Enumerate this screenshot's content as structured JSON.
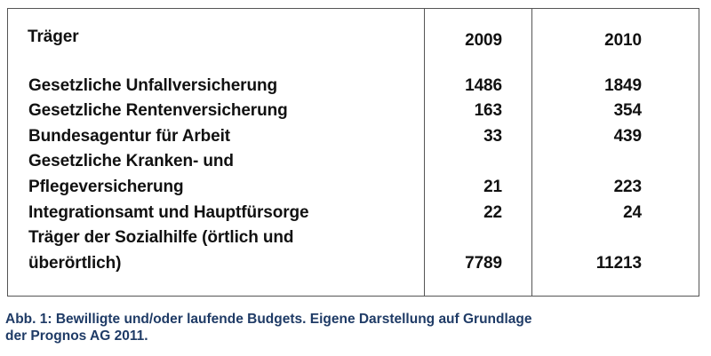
{
  "chart_data": {
    "type": "table",
    "columns": [
      "Träger",
      "2009",
      "2010"
    ],
    "rows": [
      {
        "label_lines": [
          "Gesetzliche Unfallversicherung"
        ],
        "y2009": "1486",
        "y2010": "1849"
      },
      {
        "label_lines": [
          "Gesetzliche Rentenversicherung"
        ],
        "y2009": "163",
        "y2010": "354"
      },
      {
        "label_lines": [
          "Bundesagentur für Arbeit"
        ],
        "y2009": "33",
        "y2010": "439"
      },
      {
        "label_lines": [
          "Gesetzliche Kranken- und",
          "Pflegeversicherung"
        ],
        "y2009": "21",
        "y2010": "223"
      },
      {
        "label_lines": [
          "Integrationsamt und Hauptfürsorge"
        ],
        "y2009": "22",
        "y2010": "24"
      },
      {
        "label_lines": [
          "Träger der Sozialhilfe (örtlich und",
          "überörtlich)"
        ],
        "y2009": "7789",
        "y2010": "11213"
      }
    ]
  },
  "caption": {
    "line1": "Abb. 1: Bewilligte und/oder laufende Budgets. Eigene Darstellung auf Grundlage",
    "line2": "der Prognos AG 2011."
  },
  "colors": {
    "caption": "#1f3b66",
    "border": "#555555"
  }
}
